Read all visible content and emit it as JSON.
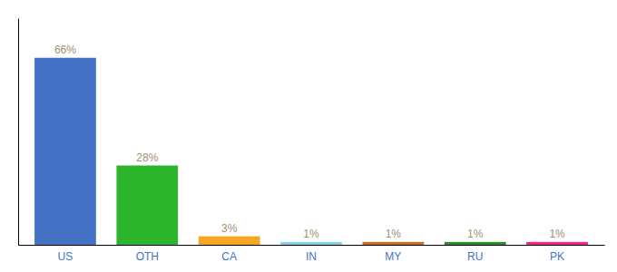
{
  "chart_data": {
    "type": "bar",
    "categories": [
      "US",
      "OTH",
      "CA",
      "IN",
      "MY",
      "RU",
      "PK"
    ],
    "values": [
      66,
      28,
      3,
      1,
      1,
      1,
      1
    ],
    "value_labels": [
      "66%",
      "28%",
      "3%",
      "1%",
      "1%",
      "1%",
      "1%"
    ],
    "colors": [
      "#4472c4",
      "#2db52d",
      "#f5a623",
      "#87ceeb",
      "#c87020",
      "#2e8b2e",
      "#f0268a"
    ],
    "ylim": [
      0,
      80
    ],
    "data_labels": true,
    "tick_labels": "x",
    "grid": false
  }
}
